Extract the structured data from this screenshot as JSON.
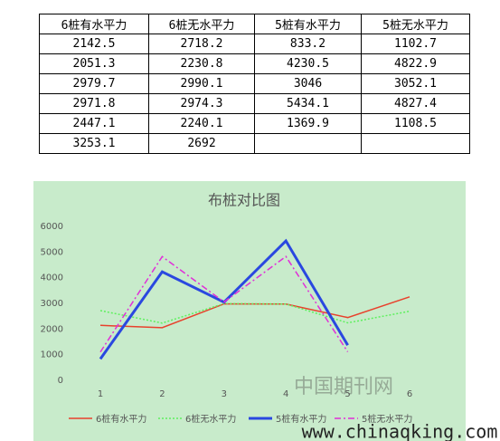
{
  "table": {
    "header": [
      "6桩有水平力",
      "6桩无水平力",
      "5桩有水平力",
      "5桩无水平力"
    ],
    "rows": [
      [
        2142.5,
        2718.2,
        833.2,
        1102.7
      ],
      [
        2051.3,
        2230.8,
        4230.5,
        4822.9
      ],
      [
        2979.7,
        2990.1,
        3046,
        3052.1
      ],
      [
        2971.8,
        2974.3,
        5434.1,
        4827.4
      ],
      [
        2447.1,
        2240.1,
        1369.9,
        1108.5
      ],
      [
        3253.1,
        2692
      ]
    ]
  },
  "chart_data": {
    "type": "line",
    "title": "布桩对比图",
    "categories": [
      "1",
      "2",
      "3",
      "4",
      "5",
      "6"
    ],
    "series": [
      {
        "name": "6桩有水平力",
        "color": "#e8412c",
        "dash": "solid",
        "values": [
          2142.5,
          2051.3,
          2979.7,
          2971.8,
          2447.1,
          3253.1
        ]
      },
      {
        "name": "6桩无水平力",
        "color": "#5ef05e",
        "dash": "dot",
        "values": [
          2718.2,
          2230.8,
          2990.1,
          2974.3,
          2240.1,
          2692
        ]
      },
      {
        "name": "5桩有水平力",
        "color": "#2a48e0",
        "dash": "solid-thick",
        "values": [
          833.2,
          4230.5,
          3046,
          5434.1,
          1369.9,
          null
        ]
      },
      {
        "name": "5桩无水平力",
        "color": "#e030d8",
        "dash": "dashdot",
        "values": [
          1102.7,
          4822.9,
          3052.1,
          4827.4,
          1108.5,
          null
        ]
      }
    ],
    "ylim": [
      0,
      6000
    ],
    "yticks": [
      0,
      1000,
      2000,
      3000,
      4000,
      5000,
      6000
    ],
    "grid": false,
    "legend": "bottom"
  },
  "watermark": {
    "cn": "中国期刊网",
    "url": "www.chinaqking.com"
  }
}
